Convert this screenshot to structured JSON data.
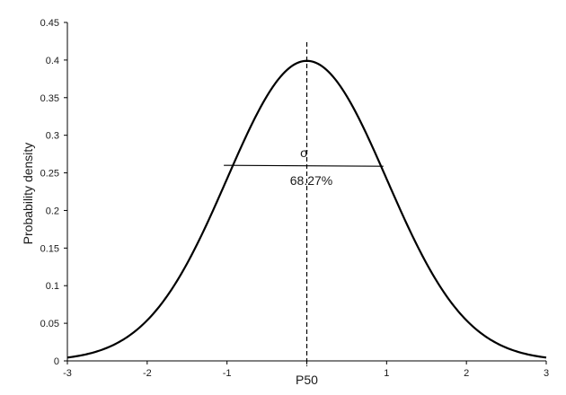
{
  "chart_data": {
    "type": "line",
    "title": "",
    "xlabel": "P50",
    "ylabel": "Probability density",
    "xlim": [
      -3,
      3
    ],
    "ylim": [
      0,
      0.45
    ],
    "x_ticks": [
      -3,
      -2,
      -1,
      0,
      1,
      2,
      3
    ],
    "x_tick_labels": [
      "-3",
      "-2",
      "-1",
      "",
      "1",
      "2",
      "3"
    ],
    "y_ticks": [
      0,
      0.05,
      0.1,
      0.15,
      0.2,
      0.25,
      0.3,
      0.35,
      0.4,
      0.45
    ],
    "y_tick_labels": [
      "0",
      "0.05",
      "0.1",
      "0.15",
      "0.2",
      "0.25",
      "0.3",
      "0.35",
      "0.4",
      "0.45"
    ],
    "grid": false,
    "legend": false,
    "series": [
      {
        "x": [
          -3,
          -2.75,
          -2.5,
          -2.25,
          -2,
          -1.75,
          -1.5,
          -1.25,
          -1,
          -0.75,
          -0.5,
          -0.25,
          0,
          0.25,
          0.5,
          0.75,
          1,
          1.25,
          1.5,
          1.75,
          2,
          2.25,
          2.5,
          2.75,
          3
        ],
        "values": [
          0.0044,
          0.0091,
          0.0175,
          0.0317,
          0.054,
          0.0863,
          0.1295,
          0.1826,
          0.242,
          0.3011,
          0.3521,
          0.3867,
          0.3989,
          0.3867,
          0.3521,
          0.3011,
          0.242,
          0.1826,
          0.1295,
          0.0863,
          0.054,
          0.0317,
          0.0175,
          0.0091,
          0.0044
        ]
      }
    ],
    "reference_lines": {
      "median_x": 0,
      "sigma_band": {
        "x_from": -1,
        "x_to": 1,
        "y": 0.26
      }
    },
    "annotations": {
      "sigma": "σ",
      "percent": "68.27%"
    },
    "colors": {
      "curve": "#000000",
      "axis": "#000000"
    }
  }
}
